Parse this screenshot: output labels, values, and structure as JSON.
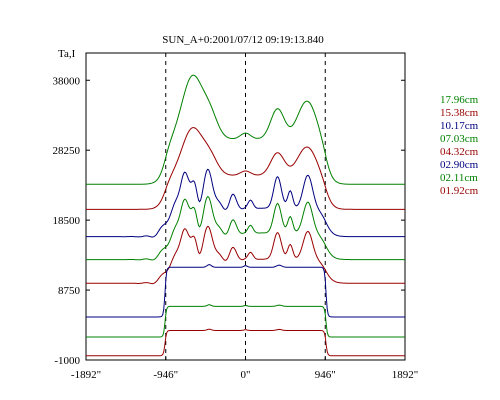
{
  "chart_data": {
    "type": "line",
    "title": "SUN_A+0:2001/07/12 09:19:13.840",
    "ylabel": "Ta,I",
    "xlabel": "",
    "y_ticks": [
      "38000",
      "28250",
      "18500",
      "8750",
      "-1000"
    ],
    "x_ticks": [
      "-1892\"",
      "-946\"",
      "0\"",
      "946\"",
      "1892\""
    ],
    "ylim": [
      -1000,
      41800
    ],
    "xlim": [
      -1892,
      1892
    ],
    "dashed_vlines": [
      -946,
      0,
      946
    ],
    "grid": false,
    "legend_position": "right",
    "series": [
      {
        "name": "17.96cm",
        "color": "#008000",
        "baseline": 23500,
        "amp": 14000,
        "style": "smooth"
      },
      {
        "name": "15.38cm",
        "color": "#990000",
        "baseline": 20000,
        "amp": 10500,
        "style": "smooth"
      },
      {
        "name": "10.17cm",
        "color": "#000080",
        "baseline": 16200,
        "amp": 11000,
        "style": "detailed"
      },
      {
        "name": "07.03cm",
        "color": "#008000",
        "baseline": 13000,
        "amp": 10300,
        "style": "detailed"
      },
      {
        "name": "04.32cm",
        "color": "#990000",
        "baseline": 9700,
        "amp": 9300,
        "style": "detailed"
      },
      {
        "name": "02.90cm",
        "color": "#000080",
        "baseline": 5000,
        "amp": 7300,
        "style": "flat"
      },
      {
        "name": "02.11cm",
        "color": "#008000",
        "baseline": 2200,
        "amp": 4500,
        "style": "flat"
      },
      {
        "name": "01.92cm",
        "color": "#990000",
        "baseline": -400,
        "amp": 3700,
        "style": "flat"
      }
    ]
  }
}
